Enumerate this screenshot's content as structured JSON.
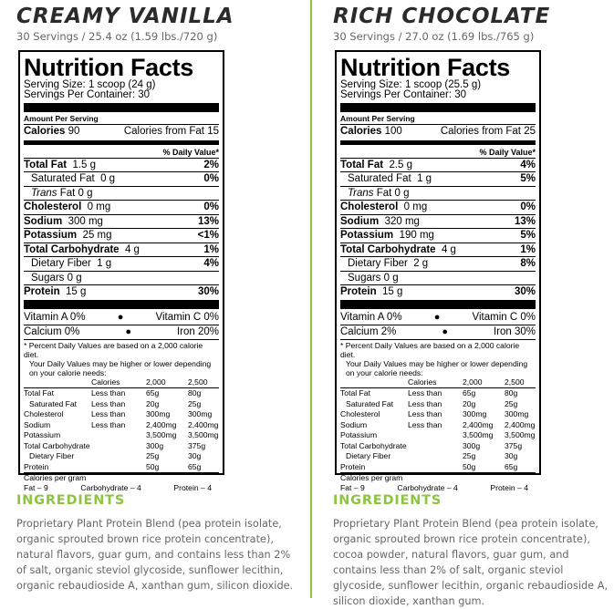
{
  "products": [
    {
      "flavor": "CREAMY VANILLA",
      "servings_line": "30 Servings / 25.4 oz (1.59 lbs./720 g)",
      "nf_title": "Nutrition Facts",
      "serving_size": "Serving Size: 1 scoop (24 g)",
      "servings_per_container": "Servings Per Container: 30",
      "amount_per_serving": "Amount Per Serving",
      "calories_label": "Calories",
      "calories": "90",
      "calories_fat": "Calories from Fat 15",
      "dv_header": "% Daily Value*",
      "nutrients": [
        {
          "label": "Total Fat",
          "amount": "1.5 g",
          "dv": "2%"
        },
        {
          "label": "Saturated Fat",
          "amount": "0 g",
          "dv": "0%"
        },
        {
          "label": "Trans",
          "amount": "Fat  0 g",
          "dv": ""
        },
        {
          "label": "Cholesterol",
          "amount": "0 mg",
          "dv": "0%"
        },
        {
          "label": "Sodium",
          "amount": "300 mg",
          "dv": "13%"
        },
        {
          "label": "Potassium",
          "amount": "25 mg",
          "dv": "<1%"
        },
        {
          "label": "Total Carbohydrate",
          "amount": "4 g",
          "dv": "1%"
        },
        {
          "label": "Dietary Fiber",
          "amount": "1 g",
          "dv": "4%"
        },
        {
          "label": "Sugars",
          "amount": "0 g",
          "dv": ""
        },
        {
          "label": "Protein",
          "amount": "15 g",
          "dv": "30%"
        }
      ],
      "vitamins": [
        {
          "left": "Vitamin A  0%",
          "right": "Vitamin C  0%"
        },
        {
          "left": "Calcium   0%",
          "right": "Iron  20%"
        }
      ]
    },
    {
      "flavor": "RICH CHOCOLATE",
      "servings_line": "30 Servings / 27.0 oz (1.69 lbs./765 g)",
      "nf_title": "Nutrition Facts",
      "serving_size": "Serving Size: 1 scoop (25.5 g)",
      "servings_per_container": "Servings Per Container: 30",
      "amount_per_serving": "Amount Per Serving",
      "calories_label": "Calories",
      "calories": "100",
      "calories_fat": "Calories from Fat 25",
      "dv_header": "% Daily Value*",
      "nutrients": [
        {
          "label": "Total Fat",
          "amount": "2.5 g",
          "dv": "4%"
        },
        {
          "label": "Saturated Fat",
          "amount": "1 g",
          "dv": "5%"
        },
        {
          "label": "Trans",
          "amount": "Fat  0 g",
          "dv": ""
        },
        {
          "label": "Cholesterol",
          "amount": "0 mg",
          "dv": "0%"
        },
        {
          "label": "Sodium",
          "amount": "320 mg",
          "dv": "13%"
        },
        {
          "label": "Potassium",
          "amount": "190 mg",
          "dv": "5%"
        },
        {
          "label": "Total Carbohydrate",
          "amount": "4 g",
          "dv": "1%"
        },
        {
          "label": "Dietary Fiber",
          "amount": "2 g",
          "dv": "8%"
        },
        {
          "label": "Sugars",
          "amount": "0 g",
          "dv": ""
        },
        {
          "label": "Protein",
          "amount": "15 g",
          "dv": "30%"
        }
      ],
      "vitamins": [
        {
          "left": "Vitamin A  0%",
          "right": "Vitamin C  0%"
        },
        {
          "left": "Calcium   2%",
          "right": "Iron  30%"
        }
      ]
    }
  ],
  "footnote": {
    "line1": "* Percent Daily Values are based on a 2,000 calorie diet.",
    "line2": "Your Daily Values may be higher or lower depending",
    "line3": "on your calorie needs:",
    "header": [
      "",
      "Calories",
      "2,000",
      "2,500"
    ],
    "rows": [
      [
        "Total Fat",
        "Less than",
        "65g",
        "80g"
      ],
      [
        "Saturated Fat",
        "Less than",
        "20g",
        "25g"
      ],
      [
        "Cholesterol",
        "Less than",
        "300mg",
        "300mg"
      ],
      [
        "Sodium",
        "Less than",
        "2,400mg",
        "2,400mg"
      ],
      [
        "Potassium",
        "",
        "3,500mg",
        "3,500mg"
      ],
      [
        "Total Carbohydrate",
        "",
        "300g",
        "375g"
      ],
      [
        "Dietary Fiber",
        "",
        "25g",
        "30g"
      ],
      [
        "Protein",
        "",
        "50g",
        "65g"
      ]
    ],
    "cpg_label": "Calories per gram",
    "cpg_fat": "Fat – 9",
    "cpg_carb": "Carbohydrate – 4",
    "cpg_protein": "Protein – 4"
  },
  "ingredients": [
    {
      "title": "INGREDIENTS",
      "text": "Proprietary Plant Protein Blend (pea protein isolate, organic sprouted brown rice protein concentrate), natural flavors, guar gum, and contains less than 2% of salt, organic steviol glycoside, sunflower lecithin, organic rebaudioside A, xanthan gum, silicon dioxide."
    },
    {
      "title": "INGREDIENTS",
      "text": "Proprietary Plant Protein Blend (pea protein isolate, organic sprouted brown rice protein concentrate), cocoa powder, natural flavors, guar gum, and contains less than 2% of salt, organic steviol glycoside, sunflower lecithin, organic rebaudioside A, silicon dioxide, xanthan gum."
    }
  ]
}
